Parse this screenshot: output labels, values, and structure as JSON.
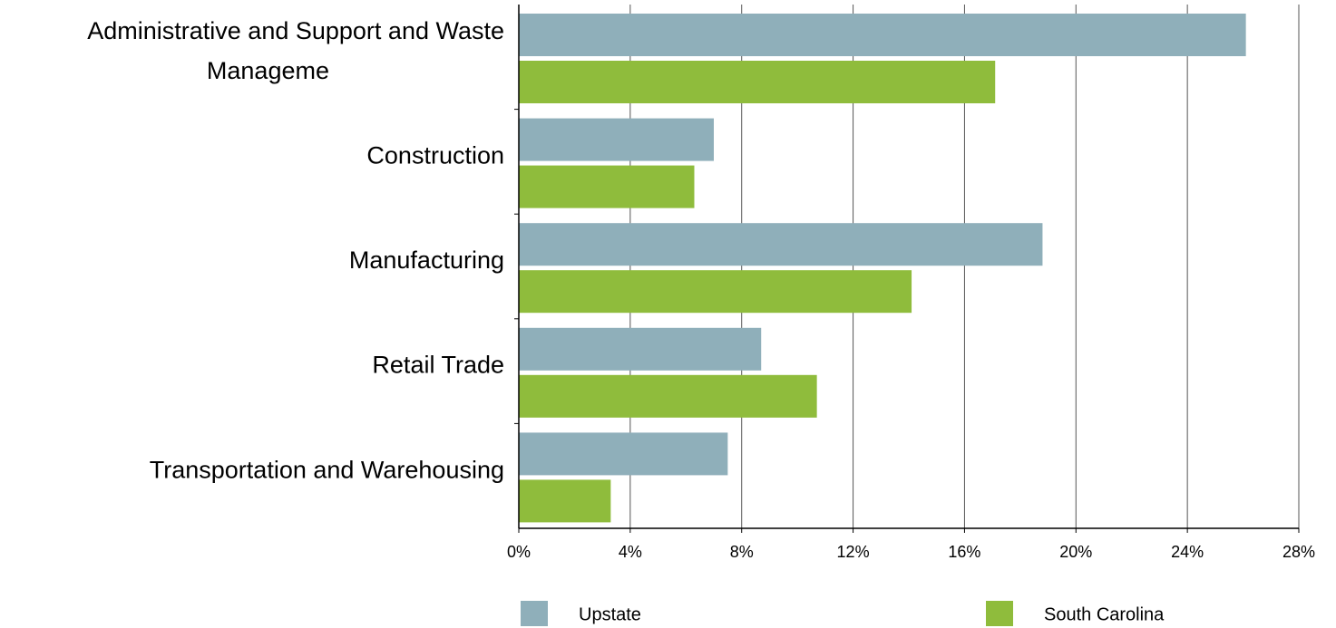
{
  "chart_data": {
    "type": "bar",
    "orientation": "horizontal",
    "categories": [
      "Administrative and Support and Waste Manageme",
      "Construction",
      "Manufacturing",
      "Retail Trade",
      "Transportation and Warehousing"
    ],
    "series": [
      {
        "name": "Upstate",
        "color": "#8fafba",
        "values": [
          26.1,
          7.0,
          18.8,
          8.7,
          7.5
        ]
      },
      {
        "name": "South Carolina",
        "color": "#8fbc3c",
        "values": [
          17.1,
          6.3,
          14.1,
          10.7,
          3.3
        ]
      }
    ],
    "xlim": [
      0,
      28
    ],
    "xticks": [
      {
        "value": 0,
        "label": "0%"
      },
      {
        "value": 4,
        "label": "4%"
      },
      {
        "value": 8,
        "label": "8%"
      },
      {
        "value": 12,
        "label": "12%"
      },
      {
        "value": 16,
        "label": "16%"
      },
      {
        "value": 20,
        "label": "20%"
      },
      {
        "value": 24,
        "label": "24%"
      },
      {
        "value": 28,
        "label": "28%"
      }
    ],
    "grid": true,
    "legend": "bottom"
  }
}
